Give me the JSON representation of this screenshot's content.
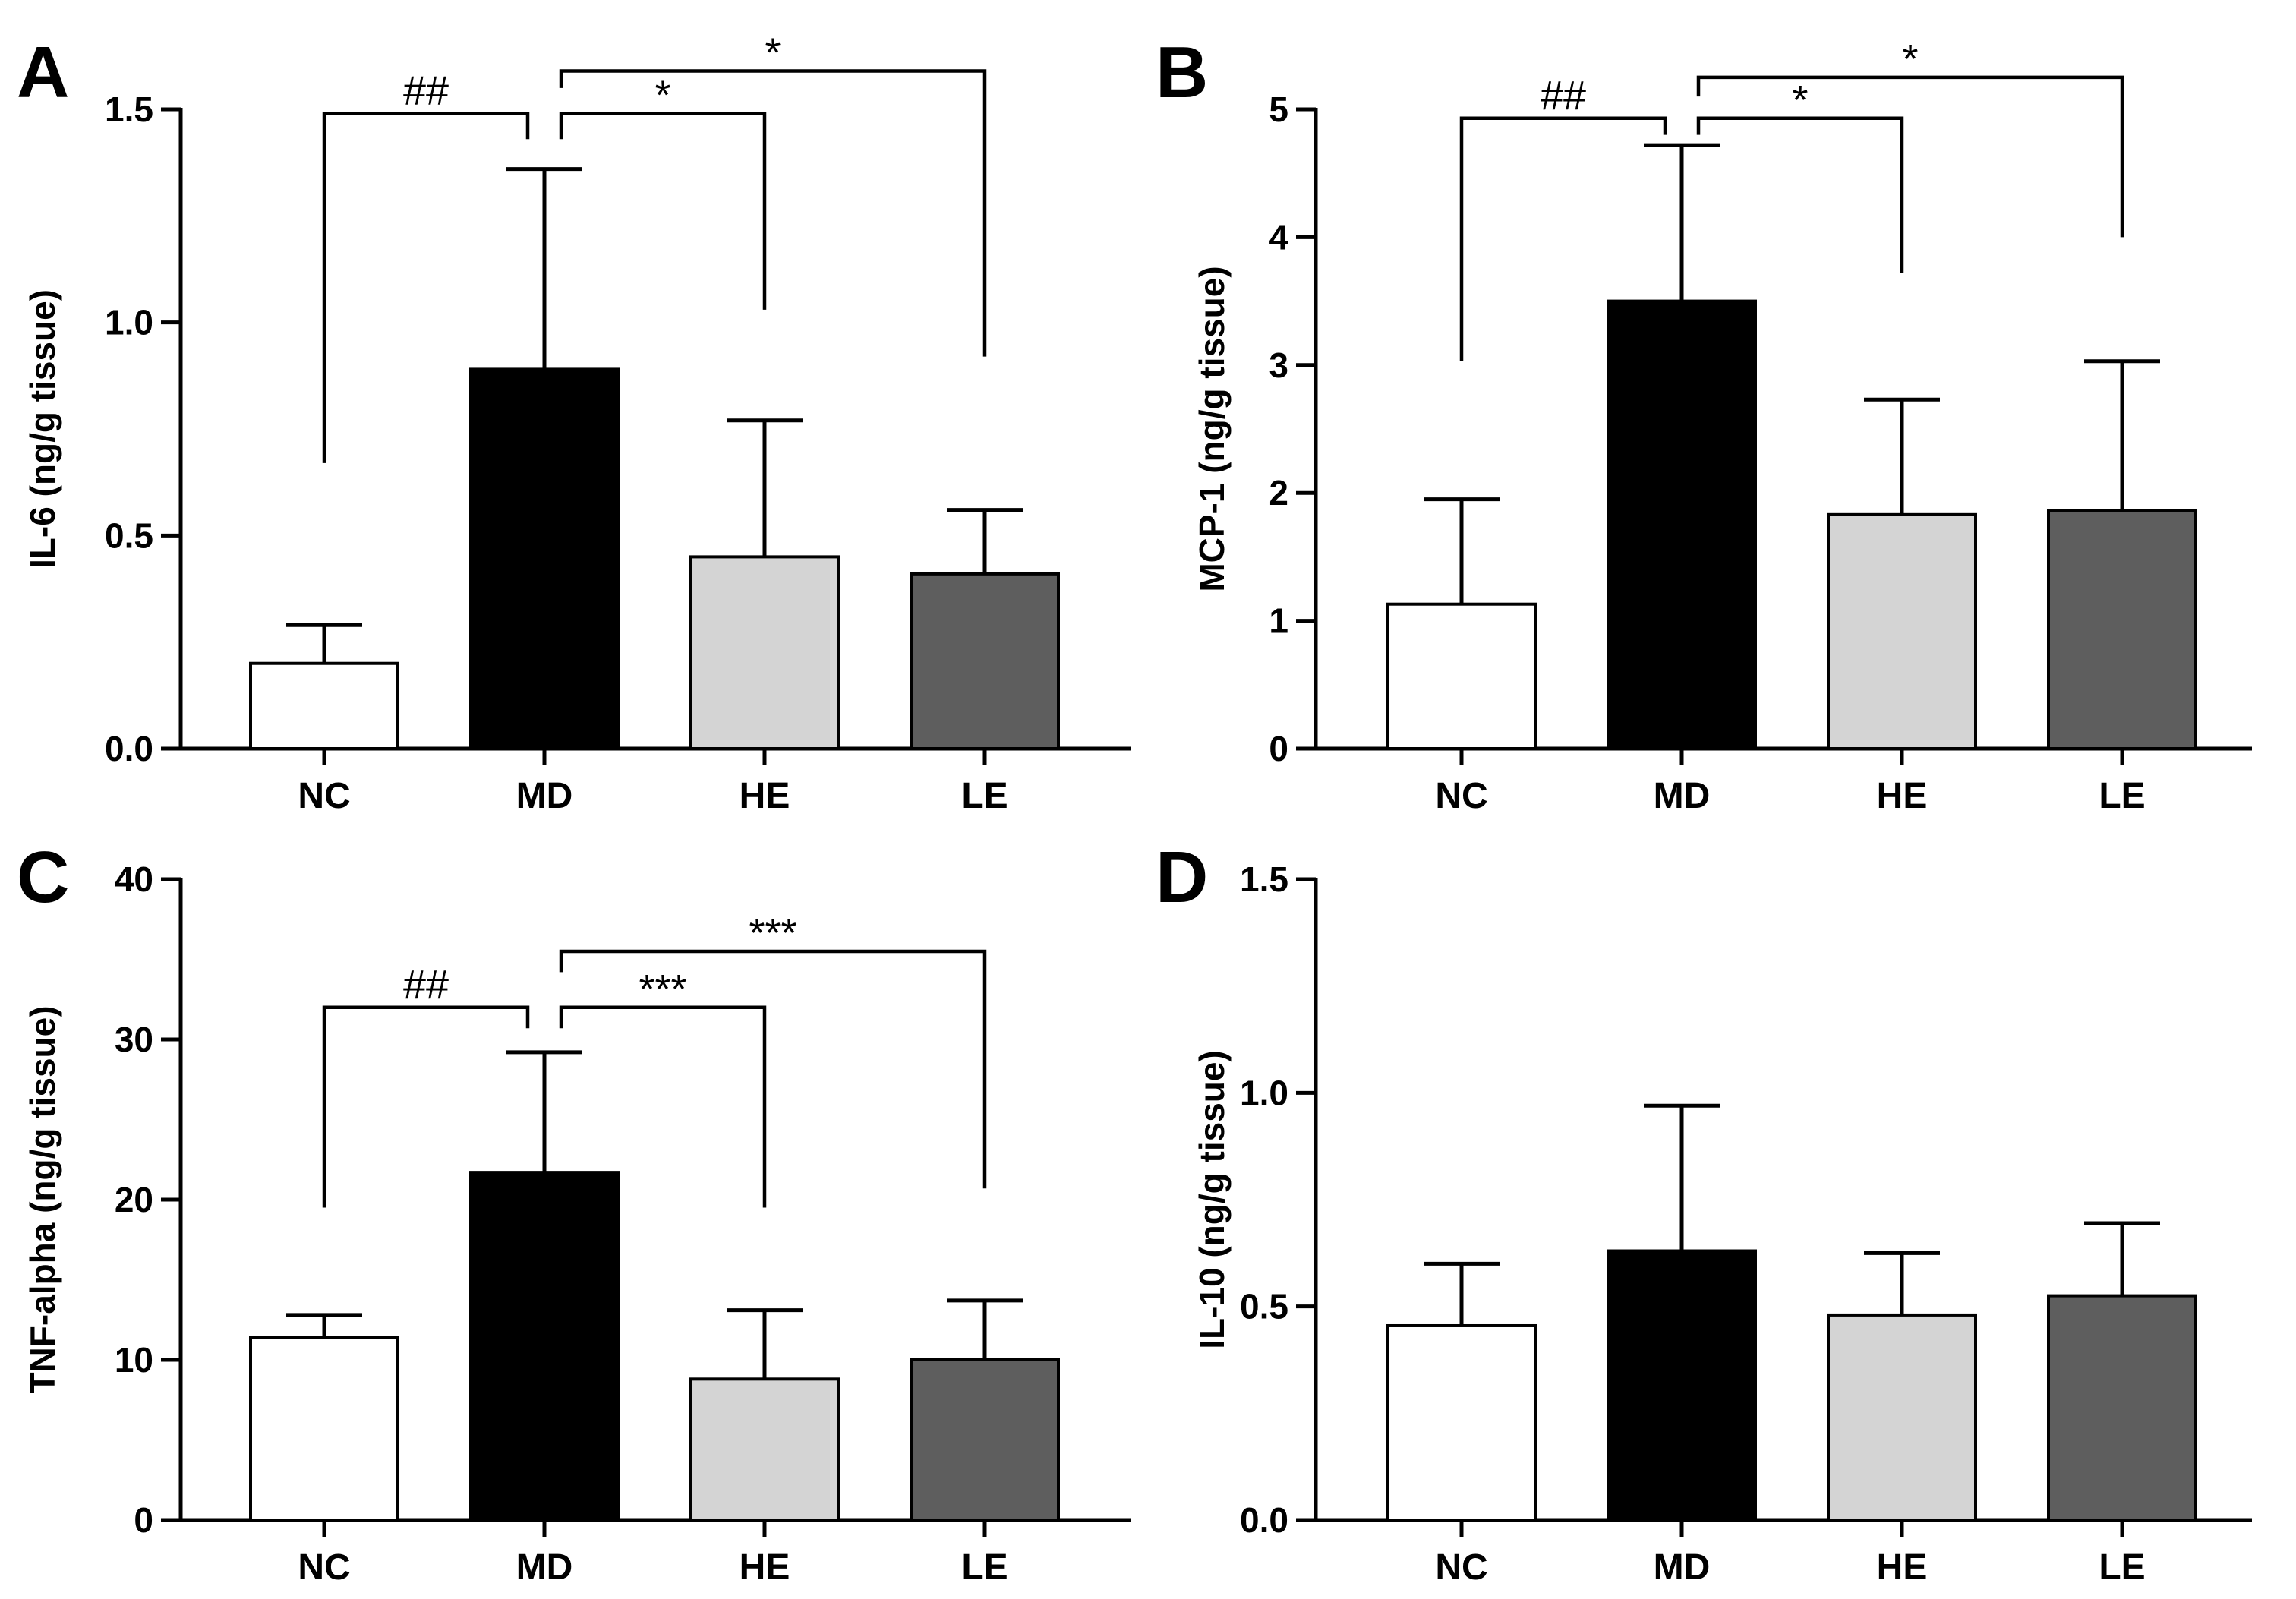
{
  "colors": {
    "NC": "#ffffff",
    "MD": "#000000",
    "HE": "#d4d4d4",
    "LE": "#5e5e5e"
  },
  "chart_data": [
    {
      "panel": "A",
      "type": "bar",
      "ylabel": "IL-6 (ng/g tissue)",
      "ylim": [
        0,
        1.5
      ],
      "yticks": [
        "0.0",
        "0.5",
        "1.0",
        "1.5"
      ],
      "categories": [
        "NC",
        "MD",
        "HE",
        "LE"
      ],
      "values": [
        0.2,
        0.89,
        0.45,
        0.41
      ],
      "errors": [
        0.09,
        0.47,
        0.32,
        0.15
      ],
      "annotations": [
        {
          "from": "NC",
          "to": "MD",
          "label": "##",
          "level": 1.49,
          "left_drop": 0.67,
          "right_drop": 1.43
        },
        {
          "from": "MD",
          "to": "HE",
          "label": "*",
          "level": 1.49,
          "left_drop": 1.43,
          "right_drop": 1.03
        },
        {
          "from": "MD",
          "to": "LE",
          "label": "*",
          "level": 1.59,
          "left_drop": 1.55,
          "right_drop": 0.92
        }
      ]
    },
    {
      "panel": "B",
      "type": "bar",
      "ylabel": "MCP-1 (ng/g tissue)",
      "ylim": [
        0,
        5
      ],
      "yticks": [
        "0",
        "1",
        "2",
        "3",
        "4",
        "5"
      ],
      "categories": [
        "NC",
        "MD",
        "HE",
        "LE"
      ],
      "values": [
        1.13,
        3.5,
        1.83,
        1.86
      ],
      "errors": [
        0.82,
        1.22,
        0.9,
        1.17
      ],
      "annotations": [
        {
          "from": "NC",
          "to": "MD",
          "label": "##",
          "level": 4.93,
          "left_drop": 3.03,
          "right_drop": 4.8
        },
        {
          "from": "MD",
          "to": "HE",
          "label": "*",
          "level": 4.93,
          "left_drop": 4.8,
          "right_drop": 3.72
        },
        {
          "from": "MD",
          "to": "LE",
          "label": "*",
          "level": 5.25,
          "left_drop": 5.1,
          "right_drop": 4.0
        }
      ]
    },
    {
      "panel": "C",
      "type": "bar",
      "ylabel": "TNF-alpha (ng/g tissue)",
      "ylim": [
        0,
        40
      ],
      "yticks": [
        "0",
        "10",
        "20",
        "30",
        "40"
      ],
      "categories": [
        "NC",
        "MD",
        "HE",
        "LE"
      ],
      "values": [
        11.4,
        21.7,
        8.8,
        10.0
      ],
      "errors": [
        1.4,
        7.5,
        4.3,
        3.7
      ],
      "annotations": [
        {
          "from": "NC",
          "to": "MD",
          "label": "##",
          "level": 32.0,
          "left_drop": 19.5,
          "right_drop": 30.7
        },
        {
          "from": "MD",
          "to": "HE",
          "label": "***",
          "level": 32.0,
          "left_drop": 30.7,
          "right_drop": 19.5
        },
        {
          "from": "MD",
          "to": "LE",
          "label": "***",
          "level": 35.5,
          "left_drop": 34.2,
          "right_drop": 20.7
        }
      ]
    },
    {
      "panel": "D",
      "type": "bar",
      "ylabel": "IL-10 (ng/g tissue)",
      "ylim": [
        0,
        1.5
      ],
      "yticks": [
        "0.0",
        "0.5",
        "1.0",
        "1.5"
      ],
      "categories": [
        "NC",
        "MD",
        "HE",
        "LE"
      ],
      "values": [
        0.455,
        0.63,
        0.48,
        0.525
      ],
      "errors": [
        0.145,
        0.34,
        0.145,
        0.17
      ],
      "annotations": []
    }
  ]
}
